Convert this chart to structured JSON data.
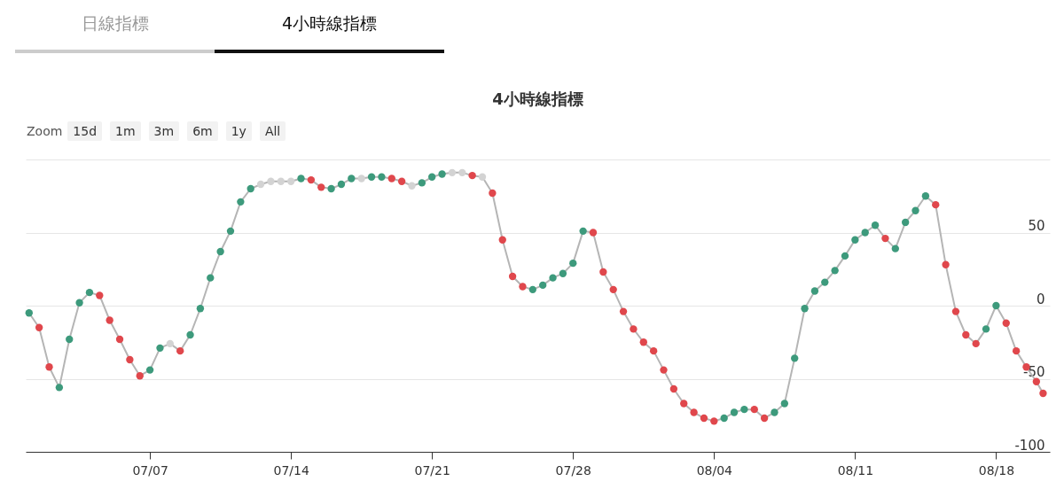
{
  "chart_data": {
    "type": "line",
    "title": "4小時線指標",
    "annotations": [
      "日線指標",
      "4小時線指標",
      "Zoom",
      "15d",
      "1m",
      "3m",
      "6m",
      "1y",
      "All"
    ],
    "x": [
      "--07-01T00:00",
      "--07-01T12:00",
      "--07-02T00:00",
      "--07-02T12:00",
      "--07-03T00:00",
      "--07-03T12:00",
      "--07-04T00:00",
      "--07-04T12:00",
      "--07-05T00:00",
      "--07-05T12:00",
      "--07-06T00:00",
      "--07-06T12:00",
      "--07-07T00:00",
      "--07-07T12:00",
      "--07-08T00:00",
      "--07-08T12:00",
      "--07-09T00:00",
      "--07-09T12:00",
      "--07-10T00:00",
      "--07-10T12:00",
      "--07-11T00:00",
      "--07-11T12:00",
      "--07-12T00:00",
      "--07-12T12:00",
      "--07-13T00:00",
      "--07-13T12:00",
      "--07-14T00:00",
      "--07-14T12:00",
      "--07-15T00:00",
      "--07-15T12:00",
      "--07-16T00:00",
      "--07-16T12:00",
      "--07-17T00:00",
      "--07-17T12:00",
      "--07-18T00:00",
      "--07-18T12:00",
      "--07-19T00:00",
      "--07-19T12:00",
      "--07-20T00:00",
      "--07-20T12:00",
      "--07-21T00:00",
      "--07-21T12:00",
      "--07-22T00:00",
      "--07-22T12:00",
      "--07-23T00:00",
      "--07-23T12:00",
      "--07-24T00:00",
      "--07-24T12:00",
      "--07-25T00:00",
      "--07-25T12:00",
      "--07-26T00:00",
      "--07-26T12:00",
      "--07-27T00:00",
      "--07-27T12:00",
      "--07-28T00:00",
      "--07-28T12:00",
      "--07-29T00:00",
      "--07-29T12:00",
      "--07-30T00:00",
      "--07-30T12:00",
      "--07-31T00:00",
      "--07-31T12:00",
      "--08-01T00:00",
      "--08-01T12:00",
      "--08-02T00:00",
      "--08-02T12:00",
      "--08-03T00:00",
      "--08-03T12:00",
      "--08-04T00:00",
      "--08-04T12:00",
      "--08-05T00:00",
      "--08-05T12:00",
      "--08-06T00:00",
      "--08-06T12:00",
      "--08-07T00:00",
      "--08-07T12:00",
      "--08-08T00:00",
      "--08-08T12:00",
      "--08-09T00:00",
      "--08-09T12:00",
      "--08-10T00:00",
      "--08-10T12:00",
      "--08-11T00:00",
      "--08-11T12:00",
      "--08-12T00:00",
      "--08-12T12:00",
      "--08-13T00:00",
      "--08-13T12:00",
      "--08-14T00:00",
      "--08-14T12:00",
      "--08-15T00:00",
      "--08-15T12:00",
      "--08-16T00:00",
      "--08-16T12:00",
      "--08-17T00:00",
      "--08-17T12:00",
      "--08-18T00:00",
      "--08-18T12:00",
      "--08-19T00:00",
      "--08-19T12:00",
      "--08-20T00:00",
      "--08-20T08:00"
    ],
    "series": [
      {
        "color": "#b5b5b5",
        "marker": "circle",
        "values": [
          -5,
          -15,
          -42,
          -56,
          -23,
          2,
          9,
          7,
          -10,
          -23,
          -37,
          -48,
          -44,
          -29,
          -26,
          -31,
          -20,
          -2,
          19,
          37,
          51,
          71,
          80,
          83,
          85,
          85,
          85,
          87,
          86,
          81,
          80,
          83,
          87,
          87,
          88,
          88,
          87,
          85,
          82,
          84,
          88,
          90,
          91,
          91,
          89,
          88,
          77,
          45,
          20,
          13,
          11,
          14,
          19,
          22,
          29,
          51,
          50,
          23,
          11,
          -4,
          -16,
          -25,
          -31,
          -44,
          -57,
          -67,
          -73,
          -77,
          -79,
          -77,
          -73,
          -71,
          -71,
          -77,
          -73,
          -67,
          -36,
          -2,
          10,
          16,
          24,
          34,
          45,
          50,
          55,
          46,
          39,
          57,
          65,
          75,
          69,
          28,
          -4,
          -20,
          -26,
          -16,
          0,
          -12,
          -31,
          -42,
          -52,
          -60
        ],
        "colors": [
          "#3d9a7c",
          "#e0474c",
          "#e0474c",
          "#3d9a7c",
          "#3d9a7c",
          "#3d9a7c",
          "#3d9a7c",
          "#e0474c",
          "#e0474c",
          "#e0474c",
          "#e0474c",
          "#e0474c",
          "#3d9a7c",
          "#3d9a7c",
          "#d3d3d3",
          "#e0474c",
          "#3d9a7c",
          "#3d9a7c",
          "#3d9a7c",
          "#3d9a7c",
          "#3d9a7c",
          "#3d9a7c",
          "#3d9a7c",
          "#d3d3d3",
          "#d3d3d3",
          "#d3d3d3",
          "#d3d3d3",
          "#3d9a7c",
          "#e0474c",
          "#e0474c",
          "#3d9a7c",
          "#3d9a7c",
          "#3d9a7c",
          "#d3d3d3",
          "#3d9a7c",
          "#3d9a7c",
          "#e0474c",
          "#e0474c",
          "#d3d3d3",
          "#3d9a7c",
          "#3d9a7c",
          "#3d9a7c",
          "#d3d3d3",
          "#d3d3d3",
          "#e0474c",
          "#d3d3d3",
          "#e0474c",
          "#e0474c",
          "#e0474c",
          "#e0474c",
          "#3d9a7c",
          "#3d9a7c",
          "#3d9a7c",
          "#3d9a7c",
          "#3d9a7c",
          "#3d9a7c",
          "#e0474c",
          "#e0474c",
          "#e0474c",
          "#e0474c",
          "#e0474c",
          "#e0474c",
          "#e0474c",
          "#e0474c",
          "#e0474c",
          "#e0474c",
          "#e0474c",
          "#e0474c",
          "#e0474c",
          "#3d9a7c",
          "#3d9a7c",
          "#3d9a7c",
          "#e0474c",
          "#e0474c",
          "#3d9a7c",
          "#3d9a7c",
          "#3d9a7c",
          "#3d9a7c",
          "#3d9a7c",
          "#3d9a7c",
          "#3d9a7c",
          "#3d9a7c",
          "#3d9a7c",
          "#3d9a7c",
          "#3d9a7c",
          "#e0474c",
          "#3d9a7c",
          "#3d9a7c",
          "#3d9a7c",
          "#3d9a7c",
          "#e0474c",
          "#e0474c",
          "#e0474c",
          "#e0474c",
          "#e0474c",
          "#3d9a7c",
          "#3d9a7c",
          "#e0474c",
          "#e0474c",
          "#e0474c",
          "#e0474c",
          "#e0474c"
        ]
      }
    ],
    "xlim": [
      "--06-30T20:00",
      "--08-20T16:00"
    ],
    "xticks": [
      {
        "value": "--07-07",
        "label": "07/07"
      },
      {
        "value": "--07-14",
        "label": "07/14"
      },
      {
        "value": "--07-21",
        "label": "07/21"
      },
      {
        "value": "--07-28",
        "label": "07/28"
      },
      {
        "value": "--08-04",
        "label": "08/04"
      },
      {
        "value": "--08-11",
        "label": "08/11"
      },
      {
        "value": "--08-18",
        "label": "08/18"
      }
    ],
    "ylim": [
      -100,
      100
    ],
    "yticks": [
      -100,
      -50,
      0,
      50,
      {
        "value": 100,
        "label": null
      }
    ],
    "grid": "y"
  }
}
